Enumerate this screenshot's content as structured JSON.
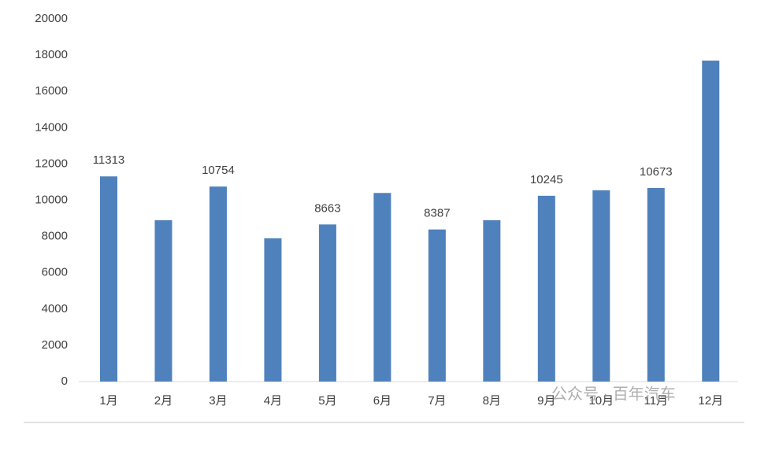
{
  "chart_data": {
    "type": "bar",
    "categories": [
      "1月",
      "2月",
      "3月",
      "4月",
      "5月",
      "6月",
      "7月",
      "8月",
      "9月",
      "10月",
      "11月",
      "12月"
    ],
    "values": [
      11313,
      8900,
      10754,
      7900,
      8663,
      10400,
      8387,
      8900,
      10245,
      10550,
      10673,
      17700
    ],
    "show_value_labels": [
      true,
      false,
      true,
      false,
      true,
      false,
      true,
      false,
      true,
      false,
      true,
      false
    ],
    "color": "#4f81bd",
    "ylim": [
      0,
      20000
    ],
    "yticks": [
      0,
      2000,
      4000,
      6000,
      8000,
      10000,
      12000,
      14000,
      16000,
      18000,
      20000
    ],
    "grid": false,
    "watermark": "公众号 · 百年汽车"
  }
}
